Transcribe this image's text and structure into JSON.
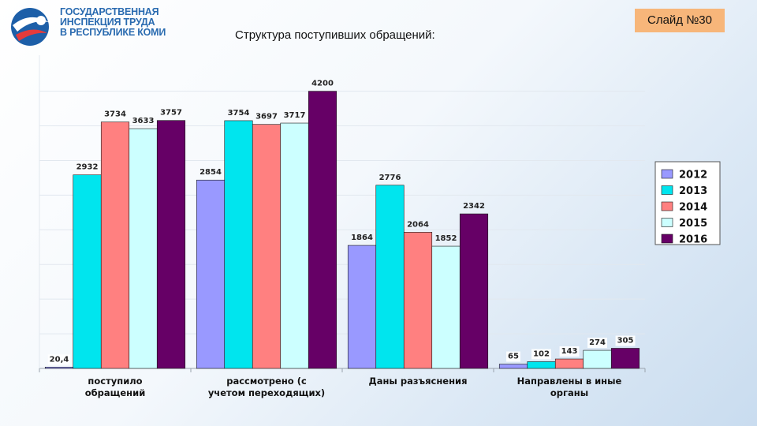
{
  "header": {
    "org_lines": [
      "ГОСУДАРСТВЕННАЯ",
      "ИНСПЕКЦИЯ ТРУДА",
      "В РЕСПУБЛИКЕ КОМИ"
    ],
    "title": "Структура поступивших обращений:",
    "slide_label": "Слайд №30"
  },
  "chart_data": {
    "type": "bar",
    "title": "Структура поступивших обращений:",
    "categories": [
      [
        "поступило",
        "обращений"
      ],
      [
        "рассмотрено (с",
        "учетом переходящих)"
      ],
      [
        "Даны разъяснения"
      ],
      [
        "Направлены в иные",
        "органы"
      ]
    ],
    "series": [
      {
        "name": "2012",
        "color": "#9999ff",
        "values": [
          20.4,
          2854,
          1864,
          65
        ],
        "labels": [
          "20,4",
          "2854",
          "1864",
          "65"
        ]
      },
      {
        "name": "2013",
        "color": "#00e5ee",
        "values": [
          2932,
          3754,
          2776,
          102
        ],
        "labels": [
          "2932",
          "3754",
          "2776",
          "102"
        ]
      },
      {
        "name": "2014",
        "color": "#ff8080",
        "values": [
          3734,
          3697,
          2064,
          143
        ],
        "labels": [
          "3734",
          "3697",
          "2064",
          "143"
        ]
      },
      {
        "name": "2015",
        "color": "#ccffff",
        "values": [
          3633,
          3717,
          1852,
          274
        ],
        "labels": [
          "3633",
          "3717",
          "1852",
          "274"
        ]
      },
      {
        "name": "2016",
        "color": "#660066",
        "values": [
          3757,
          4200,
          2342,
          305
        ],
        "labels": [
          "3757",
          "4200",
          "2342",
          "305"
        ]
      }
    ],
    "ylim": [
      0,
      4200
    ],
    "grid": true,
    "legend": "right"
  }
}
